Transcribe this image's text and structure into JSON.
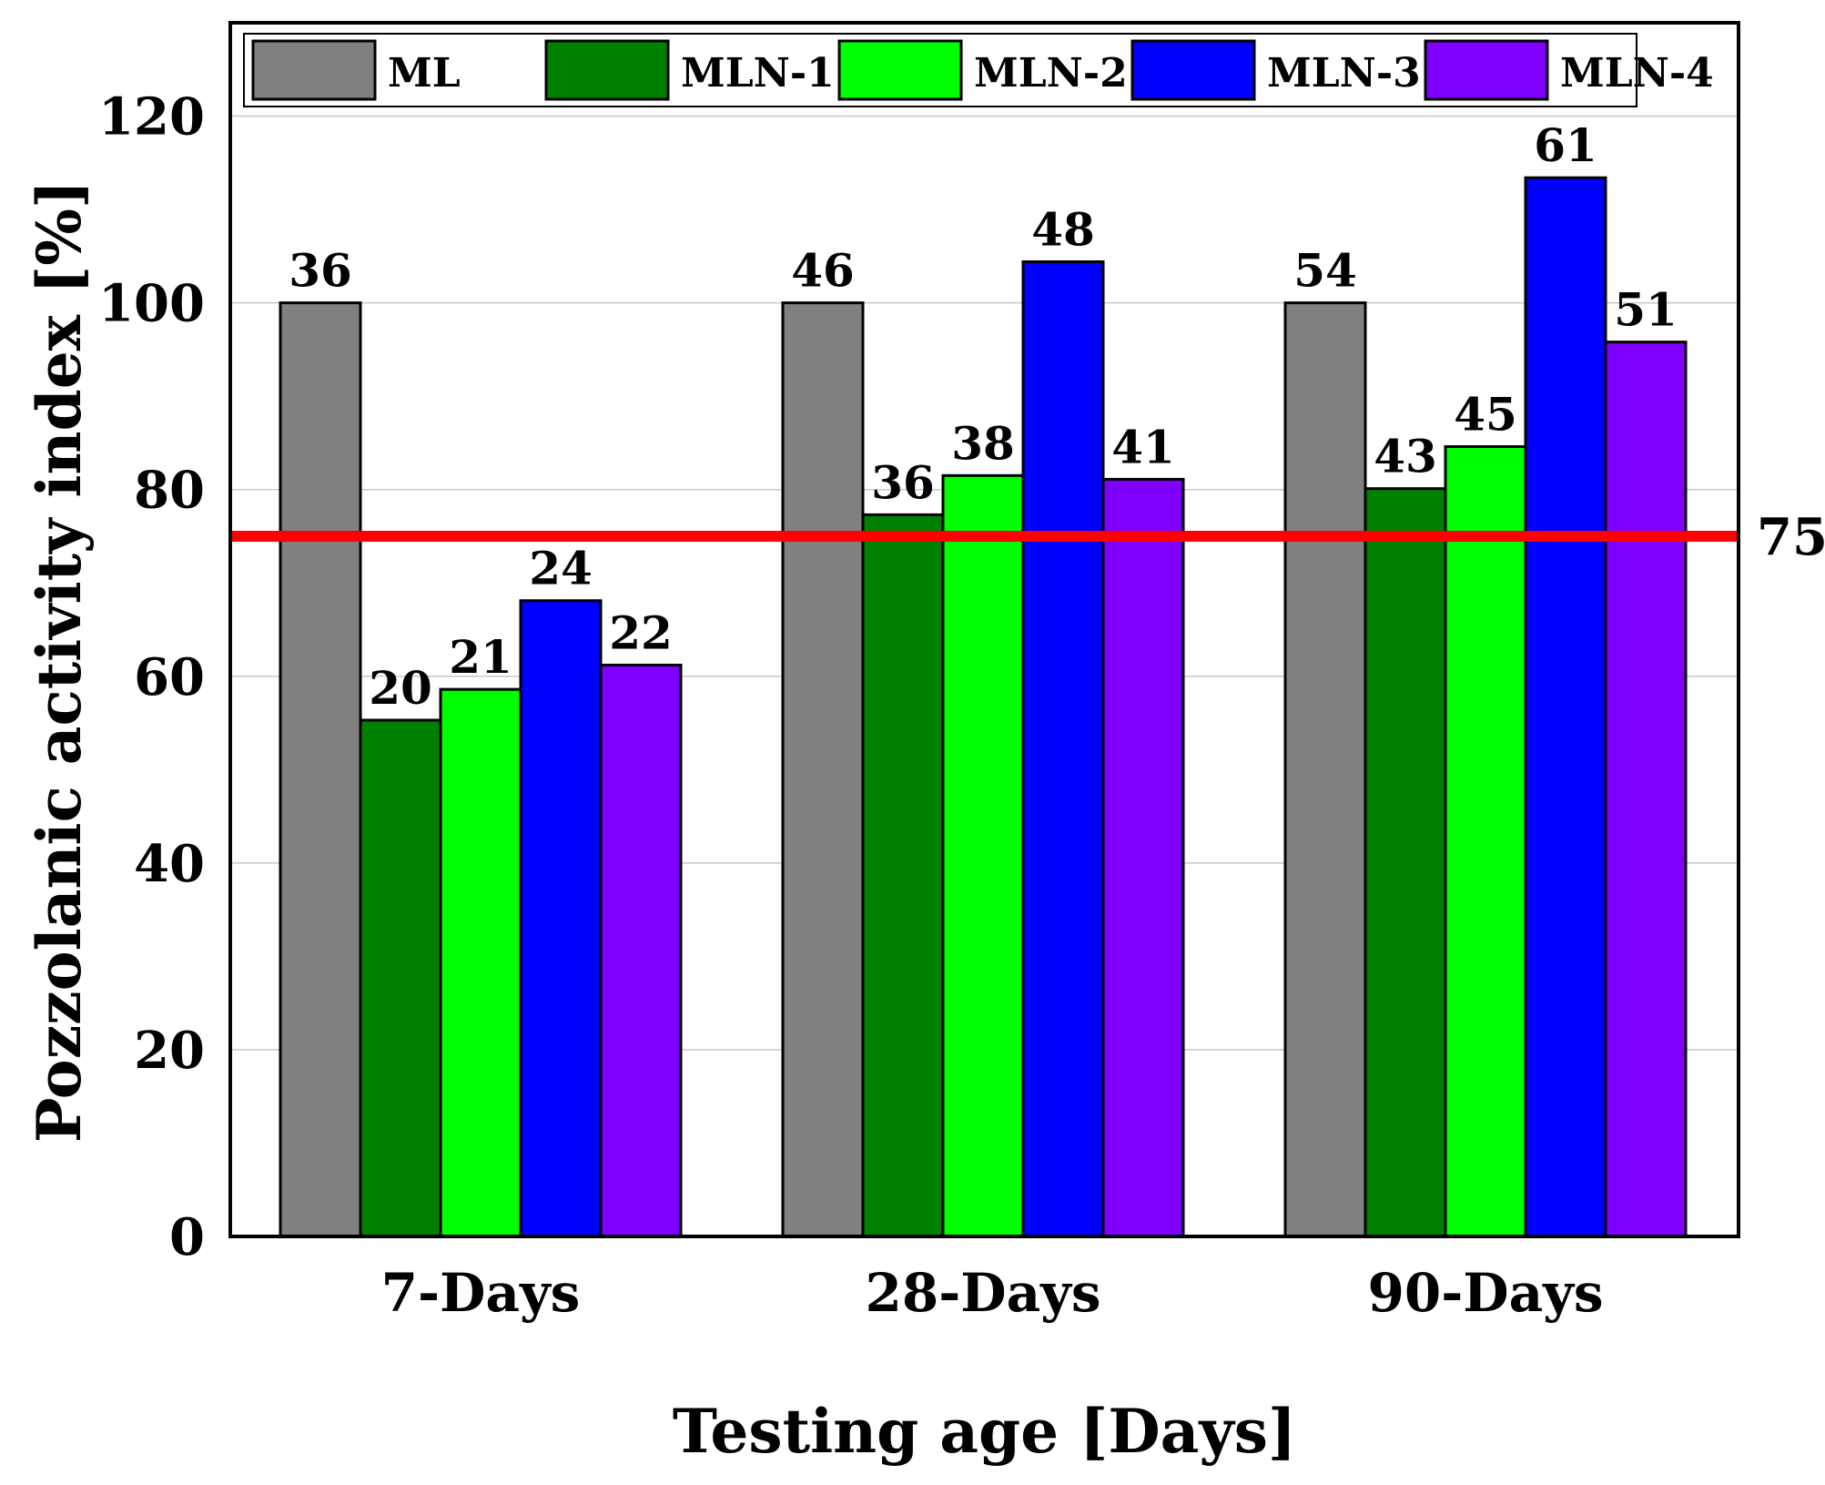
{
  "chart_data": {
    "type": "bar",
    "title": "",
    "xlabel": "Testing age [Days]",
    "ylabel": "Pozzolanic activity index [%]",
    "ylim": [
      0,
      130
    ],
    "yticks": [
      0,
      20,
      40,
      60,
      80,
      100,
      120
    ],
    "grid": "horizontal",
    "legend_position": "top",
    "categories": [
      "7-Days",
      "28-Days",
      "90-Days"
    ],
    "series": [
      {
        "name": "ML",
        "color": "#808080",
        "values": [
          100,
          100,
          100
        ],
        "labels": [
          "36",
          "46",
          "54"
        ]
      },
      {
        "name": "MLN-1",
        "color": "#008000",
        "values": [
          55.3,
          77.3,
          80.1
        ],
        "labels": [
          "20",
          "36",
          "43"
        ]
      },
      {
        "name": "MLN-2",
        "color": "#00ff00",
        "values": [
          58.6,
          81.5,
          84.6
        ],
        "labels": [
          "21",
          "38",
          "45"
        ]
      },
      {
        "name": "MLN-3",
        "color": "#0000ff",
        "values": [
          68.1,
          104.4,
          113.4
        ],
        "labels": [
          "24",
          "48",
          "61"
        ]
      },
      {
        "name": "MLN-4",
        "color": "#8000ff",
        "values": [
          61.2,
          81.1,
          95.8
        ],
        "labels": [
          "22",
          "41",
          "51"
        ]
      }
    ],
    "reference_line": {
      "value": 75,
      "label": "75",
      "color": "#ff0000"
    }
  }
}
